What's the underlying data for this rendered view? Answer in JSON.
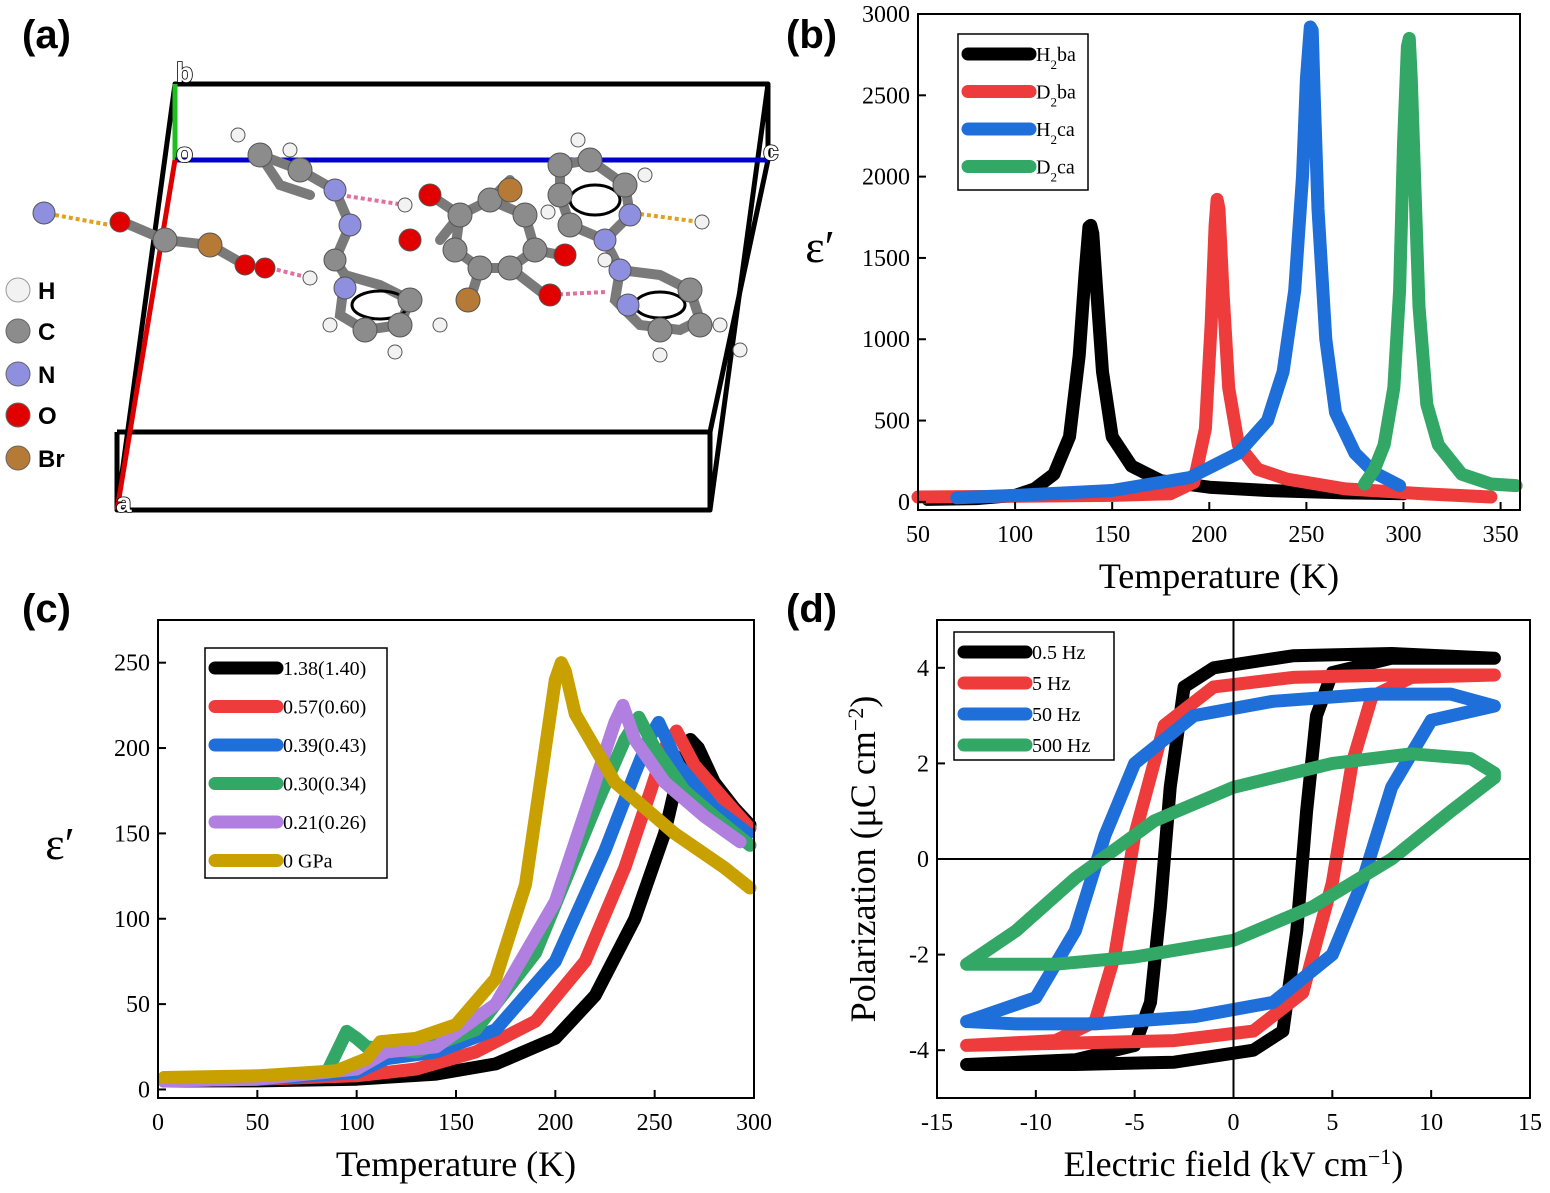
{
  "panel_labels": {
    "a": "(a)",
    "b": "(b)",
    "c": "(c)",
    "d": "(d)"
  },
  "crystal": {
    "axes": {
      "o": "o",
      "a": "a",
      "b": "b",
      "c": "c"
    },
    "atom_legend": [
      {
        "label": "H",
        "color": "#f2f2f2"
      },
      {
        "label": "C",
        "color": "#8c8c8c"
      },
      {
        "label": "N",
        "color": "#8f8fe0"
      },
      {
        "label": "O",
        "color": "#e00000"
      },
      {
        "label": "Br",
        "color": "#b57a35"
      }
    ]
  },
  "chart_data": [
    {
      "id": "b",
      "type": "line",
      "title": "",
      "xlabel": "Temperature (K)",
      "ylabel": "ε′",
      "xlim": [
        50,
        360
      ],
      "ylim": [
        -50,
        3000
      ],
      "xticks": [
        50,
        100,
        150,
        200,
        250,
        300,
        350
      ],
      "yticks": [
        0,
        500,
        1000,
        1500,
        2000,
        2500,
        3000
      ],
      "legend_position": "top-left",
      "series": [
        {
          "name_base": "H",
          "name_sub": "2",
          "name_rest": "ba",
          "color": "#000000",
          "x": [
            55,
            80,
            100,
            110,
            120,
            128,
            133,
            136,
            138,
            139,
            140,
            142,
            145,
            150,
            160,
            175,
            200,
            230,
            270,
            300
          ],
          "y": [
            15,
            20,
            40,
            80,
            170,
            400,
            900,
            1400,
            1690,
            1700,
            1650,
            1300,
            800,
            400,
            220,
            130,
            90,
            70,
            55,
            50
          ]
        },
        {
          "name_base": "D",
          "name_sub": "2",
          "name_rest": "ba",
          "color": "#ee3b3b",
          "x": [
            50,
            100,
            150,
            180,
            192,
            198,
            201,
            203,
            204,
            205,
            207,
            210,
            215,
            225,
            240,
            270,
            310,
            345
          ],
          "y": [
            30,
            35,
            40,
            50,
            120,
            450,
            1100,
            1700,
            1860,
            1800,
            1300,
            700,
            350,
            200,
            140,
            80,
            50,
            30
          ]
        },
        {
          "name_base": "H",
          "name_sub": "2",
          "name_rest": "ca",
          "color": "#1e6fd9",
          "x": [
            70,
            100,
            150,
            190,
            215,
            230,
            238,
            244,
            248,
            250,
            252,
            253,
            254,
            256,
            260,
            265,
            275,
            285,
            298
          ],
          "y": [
            25,
            40,
            70,
            150,
            300,
            500,
            800,
            1300,
            2000,
            2600,
            2920,
            2900,
            2500,
            1800,
            1000,
            550,
            300,
            180,
            100
          ]
        },
        {
          "name_base": "D",
          "name_sub": "2",
          "name_rest": "ca",
          "color": "#33a866",
          "x": [
            280,
            285,
            290,
            295,
            298,
            300,
            302,
            303,
            304,
            306,
            308,
            312,
            318,
            330,
            345,
            358
          ],
          "y": [
            110,
            200,
            350,
            700,
            1300,
            2200,
            2800,
            2850,
            2600,
            1900,
            1200,
            600,
            350,
            170,
            110,
            100
          ]
        }
      ]
    },
    {
      "id": "c",
      "type": "line",
      "title": "",
      "xlabel": "Temperature (K)",
      "ylabel": "ε′",
      "xlim": [
        0,
        300
      ],
      "ylim": [
        -5,
        275
      ],
      "xticks": [
        0,
        50,
        100,
        150,
        200,
        250,
        300
      ],
      "yticks": [
        0,
        50,
        100,
        150,
        200,
        250
      ],
      "legend_position": "top-left",
      "series": [
        {
          "name": "1.38(1.40)",
          "color": "#000000",
          "x": [
            3,
            50,
            100,
            140,
            170,
            200,
            220,
            240,
            255,
            262,
            268,
            272,
            280,
            290,
            298
          ],
          "y": [
            5,
            5,
            6,
            9,
            15,
            30,
            55,
            100,
            150,
            185,
            205,
            200,
            180,
            165,
            155
          ]
        },
        {
          "name": "0.57(0.60)",
          "color": "#ee3b3b",
          "x": [
            3,
            50,
            100,
            130,
            160,
            190,
            215,
            235,
            248,
            255,
            261,
            270,
            285,
            298
          ],
          "y": [
            5,
            6,
            8,
            12,
            22,
            40,
            75,
            130,
            175,
            200,
            210,
            190,
            170,
            153
          ]
        },
        {
          "name": "0.39(0.43)",
          "color": "#1e6fd9",
          "x": [
            3,
            50,
            100,
            115,
            140,
            170,
            200,
            225,
            240,
            247,
            252,
            262,
            280,
            297
          ],
          "y": [
            5,
            6,
            10,
            18,
            22,
            35,
            75,
            140,
            185,
            205,
            215,
            190,
            165,
            150
          ]
        },
        {
          "name": "0.30(0.34)",
          "color": "#33a866",
          "x": [
            3,
            50,
            85,
            90,
            95,
            100,
            105,
            130,
            160,
            190,
            220,
            235,
            242,
            250,
            265,
            280,
            298
          ],
          "y": [
            5,
            7,
            10,
            22,
            34,
            30,
            25,
            22,
            35,
            80,
            165,
            205,
            218,
            200,
            175,
            160,
            143
          ]
        },
        {
          "name": "0.21(0.26)",
          "color": "#b07fe0",
          "x": [
            3,
            50,
            100,
            115,
            140,
            170,
            200,
            220,
            230,
            234,
            240,
            255,
            275,
            293
          ],
          "y": [
            5,
            6,
            12,
            22,
            25,
            50,
            110,
            180,
            215,
            225,
            205,
            180,
            160,
            145
          ]
        },
        {
          "name": "0 GPa",
          "color": "#c8a000",
          "x": [
            3,
            50,
            90,
            105,
            112,
            130,
            150,
            170,
            185,
            195,
            200,
            203,
            205,
            210,
            230,
            260,
            285,
            298
          ],
          "y": [
            7,
            8,
            11,
            18,
            28,
            30,
            38,
            65,
            120,
            200,
            240,
            250,
            245,
            220,
            180,
            150,
            130,
            118
          ]
        }
      ]
    },
    {
      "id": "d",
      "type": "line",
      "title": "",
      "xlabel_base": "Electric field (kV cm",
      "xlabel_sup": "−1",
      "xlabel_end": ")",
      "ylabel_base": "Polarization (μC cm",
      "ylabel_sup": "−2",
      "ylabel_end": ")",
      "xlim": [
        -15,
        15
      ],
      "ylim": [
        -5,
        5
      ],
      "xticks": [
        -15,
        -10,
        -5,
        0,
        5,
        10,
        15
      ],
      "yticks": [
        -4,
        -2,
        0,
        2,
        4
      ],
      "legend_position": "top-left",
      "series": [
        {
          "name": "0.5 Hz",
          "color": "#000000",
          "x": [
            -13.5,
            -8,
            -5,
            -4.2,
            -3.7,
            -3.2,
            -2.5,
            -1,
            3,
            8,
            13.2,
            13.2,
            8,
            5,
            4.2,
            3.7,
            3.2,
            2.5,
            1,
            -3,
            -8,
            -13.5
          ],
          "y": [
            -4.3,
            -4.2,
            -3.9,
            -3.0,
            -1.0,
            1.5,
            3.6,
            4.0,
            4.25,
            4.3,
            4.2,
            4.2,
            4.2,
            3.9,
            3.0,
            1.0,
            -1.5,
            -3.6,
            -4.0,
            -4.25,
            -4.3,
            -4.3
          ]
        },
        {
          "name": "5 Hz",
          "color": "#ee3b3b",
          "x": [
            -13.5,
            -9,
            -7,
            -6,
            -5,
            -3.5,
            -1,
            3,
            8,
            13.2,
            13.2,
            9,
            7,
            6,
            5,
            3.5,
            1,
            -3,
            -8,
            -13.5
          ],
          "y": [
            -3.9,
            -3.8,
            -3.4,
            -2.0,
            0.5,
            2.8,
            3.6,
            3.8,
            3.85,
            3.85,
            3.85,
            3.8,
            3.4,
            2.0,
            -0.5,
            -2.8,
            -3.6,
            -3.8,
            -3.85,
            -3.9
          ]
        },
        {
          "name": "50 Hz",
          "color": "#1e6fd9",
          "x": [
            -13.5,
            -10,
            -8,
            -6.5,
            -5,
            -2,
            2,
            7,
            11,
            13.2,
            13.2,
            10,
            8,
            6.5,
            5,
            2,
            -2,
            -7,
            -11,
            -13.5
          ],
          "y": [
            -3.4,
            -2.9,
            -1.5,
            0.5,
            2.0,
            3.0,
            3.3,
            3.45,
            3.45,
            3.2,
            3.2,
            2.9,
            1.5,
            -0.5,
            -2.0,
            -3.0,
            -3.3,
            -3.45,
            -3.45,
            -3.4
          ]
        },
        {
          "name": "500 Hz",
          "color": "#33a866",
          "x": [
            -13.5,
            -11,
            -8,
            -4,
            0,
            5,
            9,
            12,
            13.2,
            13.2,
            11,
            8,
            4,
            0,
            -5,
            -9,
            -12,
            -13.5
          ],
          "y": [
            -2.2,
            -1.5,
            -0.4,
            0.8,
            1.5,
            2.0,
            2.2,
            2.1,
            1.8,
            1.7,
            1.0,
            0.0,
            -1.0,
            -1.7,
            -2.05,
            -2.2,
            -2.2,
            -2.2
          ]
        }
      ]
    }
  ]
}
